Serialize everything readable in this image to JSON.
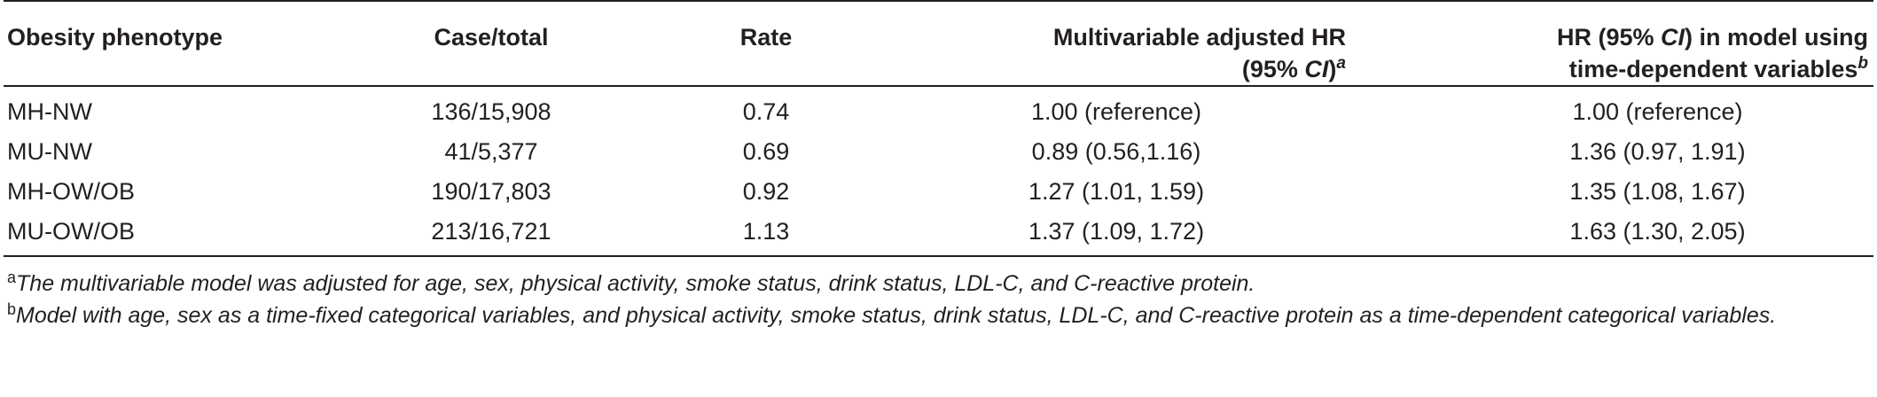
{
  "table": {
    "headers": {
      "phenotype": "Obesity phenotype",
      "case_total": "Case/total",
      "rate": "Rate",
      "hr_line1": "Multivariable adjusted HR",
      "hr_line2_pre": "(95% ",
      "hr_line2_ci": "CI",
      "hr_line2_post": ")",
      "hr_sup": "a",
      "td_line1_pre": "HR (95% ",
      "td_line1_ci": "CI",
      "td_line1_post": ") in model using",
      "td_line2": "time-dependent variables",
      "td_sup": "b"
    },
    "rows": [
      {
        "phenotype": "MH-NW",
        "case_total": "136/15,908",
        "rate": "0.74",
        "hr": "1.00 (reference)",
        "hr_td": "1.00 (reference)"
      },
      {
        "phenotype": "MU-NW",
        "case_total": "41/5,377",
        "rate": "0.69",
        "hr": "0.89 (0.56,1.16)",
        "hr_td": "1.36 (0.97, 1.91)"
      },
      {
        "phenotype": "MH-OW/OB",
        "case_total": "190/17,803",
        "rate": "0.92",
        "hr": "1.27 (1.01, 1.59)",
        "hr_td": "1.35 (1.08, 1.67)"
      },
      {
        "phenotype": "MU-OW/OB",
        "case_total": "213/16,721",
        "rate": "1.13",
        "hr": "1.37 (1.09, 1.72)",
        "hr_td": "1.63 (1.30, 2.05)"
      }
    ]
  },
  "footnotes": [
    {
      "mark": "a",
      "text": "The multivariable model was adjusted for age, sex, physical activity, smoke status, drink status, LDL-C, and C-reactive protein."
    },
    {
      "mark": "b",
      "text": "Model with age, sex as a time-fixed categorical variables, and physical activity, smoke status, drink status, LDL-C, and C-reactive protein as a time-dependent categorical variables."
    }
  ]
}
